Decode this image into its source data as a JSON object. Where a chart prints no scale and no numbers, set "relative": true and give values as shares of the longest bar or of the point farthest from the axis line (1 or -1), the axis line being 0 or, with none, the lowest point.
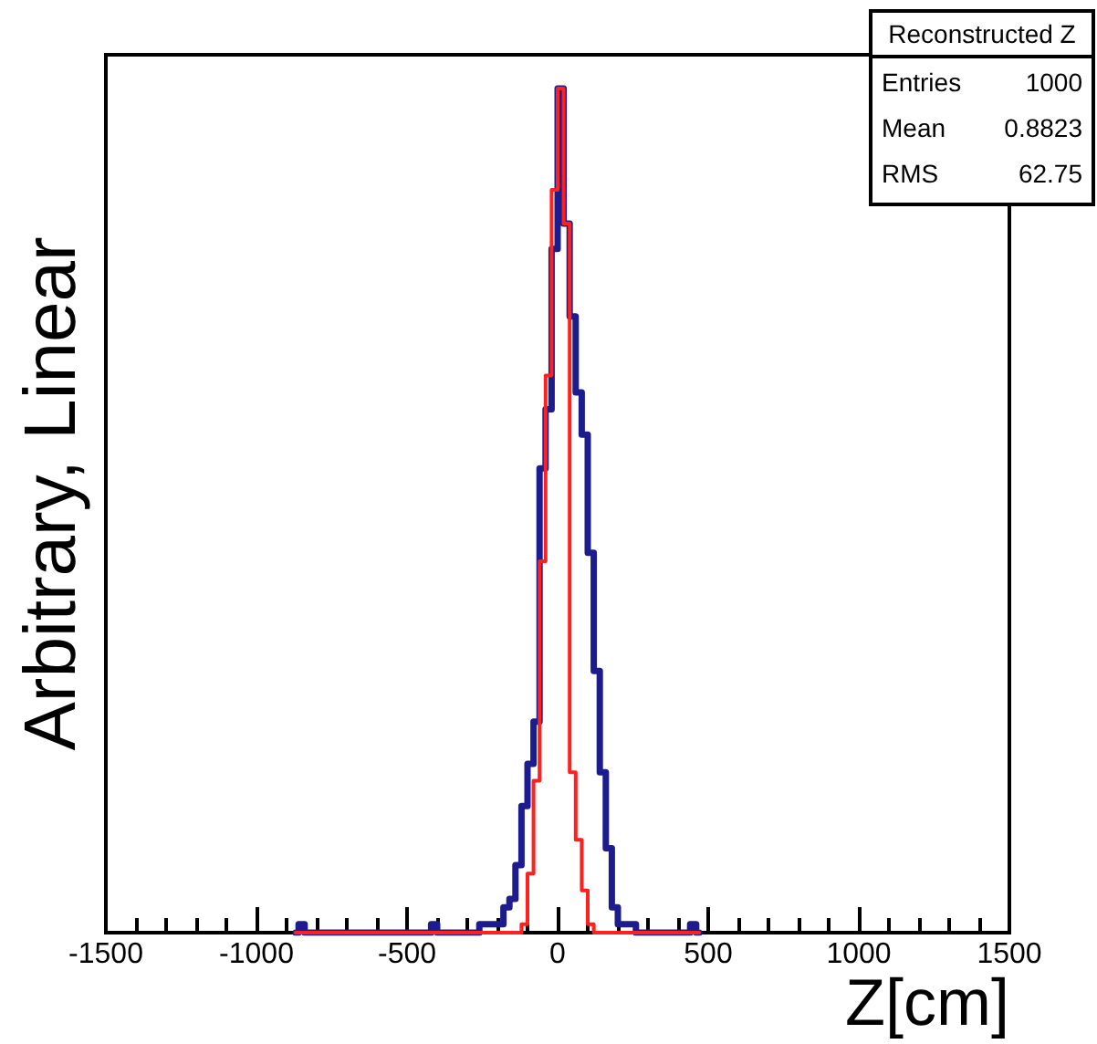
{
  "chart_data": {
    "type": "step",
    "relative": true,
    "xlabel": "Z[cm]",
    "ylabel": "Arbitrary, Linear",
    "xlim": [
      -1500,
      1500
    ],
    "xticks": [
      -1500,
      -1000,
      -500,
      0,
      500,
      1000,
      1500
    ],
    "grid": false,
    "annotations": [
      "Reconstructed Z",
      "Entries",
      "1000",
      "Mean",
      "0.8823",
      "RMS",
      "62.75"
    ],
    "x": [
      -870,
      -850,
      -830,
      -810,
      -790,
      -770,
      -750,
      -730,
      -710,
      -690,
      -670,
      -650,
      -630,
      -610,
      -590,
      -570,
      -550,
      -530,
      -510,
      -490,
      -470,
      -450,
      -430,
      -410,
      -390,
      -370,
      -350,
      -330,
      -310,
      -290,
      -270,
      -250,
      -230,
      -210,
      -190,
      -170,
      -150,
      -130,
      -110,
      -90,
      -70,
      -50,
      -30,
      -10,
      10,
      30,
      50,
      70,
      90,
      110,
      130,
      150,
      170,
      190,
      210,
      230,
      250,
      270,
      290,
      310,
      330,
      350,
      370,
      390,
      410,
      430,
      450,
      470
    ],
    "series": [
      {
        "color": "#1c1c8f",
        "values": [
          0,
          0.01,
          0,
          0,
          0,
          0,
          0,
          0,
          0,
          0,
          0,
          0,
          0,
          0,
          0,
          0,
          0,
          0,
          0,
          0,
          0,
          0,
          0,
          0.01,
          0,
          0,
          0,
          0,
          0,
          0,
          0,
          0.01,
          0.01,
          0.01,
          0.01,
          0.03,
          0.04,
          0.08,
          0.15,
          0.2,
          0.25,
          0.55,
          0.62,
          0.81,
          1,
          0.84,
          0.73,
          0.64,
          0.59,
          0.45,
          0.31,
          0.19,
          0.1,
          0.03,
          0.01,
          0.01,
          0.01,
          0,
          0,
          0,
          0,
          0,
          0,
          0,
          0,
          0,
          0.01,
          0
        ]
      },
      {
        "color": "#ff2020",
        "values": [
          0,
          0,
          0,
          0,
          0,
          0,
          0,
          0,
          0,
          0,
          0,
          0,
          0,
          0,
          0,
          0,
          0,
          0,
          0,
          0,
          0,
          0,
          0,
          0,
          0,
          0,
          0,
          0,
          0,
          0,
          0,
          0,
          0,
          0,
          0,
          0,
          0,
          0,
          0.01,
          0.07,
          0.18,
          0.44,
          0.66,
          0.88,
          1,
          0.84,
          0.19,
          0.11,
          0.05,
          0.01,
          0,
          0,
          0,
          0,
          0,
          0,
          0,
          0,
          0,
          0,
          0,
          0,
          0,
          0,
          0,
          0,
          0,
          0
        ]
      }
    ]
  }
}
